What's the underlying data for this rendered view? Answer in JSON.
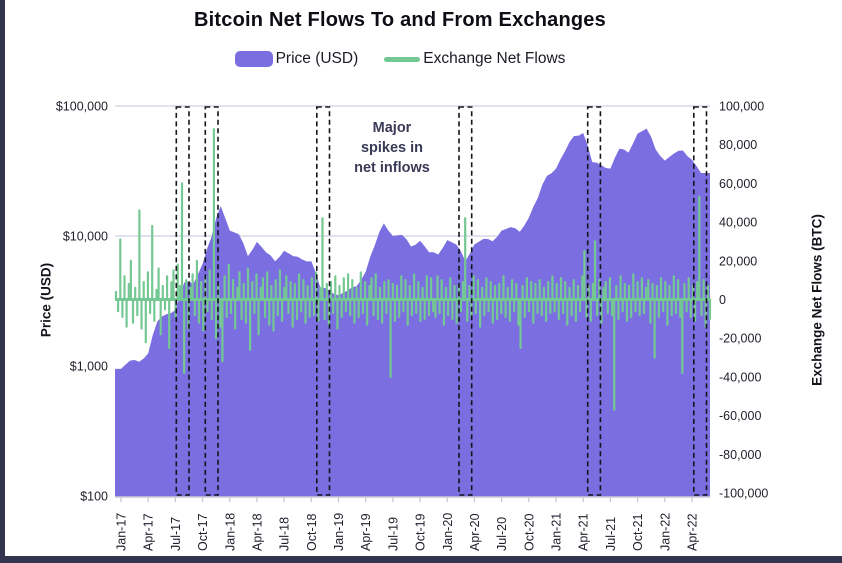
{
  "title": "Bitcoin Net Flows To and From Exchanges",
  "legend": {
    "price": {
      "label": "Price (USD)",
      "color": "#7b6ee0"
    },
    "flows": {
      "label": "Exchange Net Flows",
      "color": "#74c893"
    }
  },
  "annotation": {
    "text": "Major\nspikes in\nnet inflows"
  },
  "colors": {
    "price_area": "#7b6ee0",
    "flows_line": "#74c893",
    "gridline": "#d7d8e5",
    "axis_line": "#c9cad4",
    "tick_text": "#1f1f2b",
    "highlight_box": "#14141c",
    "frame": "#34344e"
  },
  "chart_data": {
    "type": "area",
    "title": "Bitcoin Net Flows To and From Exchanges",
    "x_start_month": "Jan-17",
    "x_end_month": "May-22",
    "x_tick_labels": [
      "Jan-17",
      "Apr-17",
      "Jul-17",
      "Oct-17",
      "Jan-18",
      "Apr-18",
      "Jul-18",
      "Oct-18",
      "Jan-19",
      "Apr-19",
      "Jul-19",
      "Oct-19",
      "Jan-20",
      "Apr-20",
      "Jul-20",
      "Oct-20",
      "Jan-21",
      "Apr-21",
      "Jul-21",
      "Oct-21",
      "Jan-22",
      "Apr-22"
    ],
    "left_axis": {
      "label": "Price (USD)",
      "scale": "log",
      "ticks": [
        "$100,000",
        "$10,000",
        "$1,000",
        "$100"
      ],
      "tick_values": [
        100000,
        10000,
        1000,
        100
      ],
      "range": [
        100,
        100000
      ]
    },
    "right_axis": {
      "label": "Exchange Net Flows (BTC)",
      "scale": "linear",
      "ticks": [
        "100,000",
        "80,000",
        "60,000",
        "40,000",
        "20,000",
        "0",
        "-20,000",
        "-40,000",
        "-60,000",
        "-80,000",
        "-100,000"
      ],
      "tick_values": [
        100000,
        80000,
        60000,
        40000,
        20000,
        0,
        -20000,
        -40000,
        -60000,
        -80000,
        -100000
      ],
      "range": [
        -100000,
        100000
      ]
    },
    "series": [
      {
        "name": "Price (USD)",
        "type": "area",
        "axis": "left",
        "color": "#7b6ee0",
        "x_unit": "months since Jan-2017",
        "values": [
          950,
          1100,
          1080,
          1250,
          2200,
          2500,
          2700,
          4400,
          4300,
          6100,
          9900,
          17000,
          11000,
          10300,
          7000,
          9000,
          7500,
          6400,
          7700,
          7000,
          6600,
          6400,
          4000,
          3800,
          3500,
          3800,
          4100,
          5300,
          8500,
          12500,
          10000,
          10200,
          8300,
          9200,
          7500,
          7200,
          9300,
          8600,
          6400,
          8600,
          9500,
          9100,
          11000,
          11700,
          10800,
          13800,
          19700,
          29000,
          33000,
          45000,
          58800,
          62000,
          37000,
          35000,
          33000,
          47000,
          43800,
          61300,
          67000,
          46300,
          38000,
          43000,
          45500,
          38600,
          30500
        ]
      },
      {
        "name": "Exchange Net Flows",
        "type": "spike-line",
        "axis": "right",
        "color": "#74c893",
        "x_unit": "weeks since Jan-2017",
        "values": [
          4000,
          -6000,
          31000,
          -9000,
          12000,
          -14000,
          8000,
          20000,
          -12000,
          6000,
          -8000,
          46000,
          -15000,
          9000,
          -22000,
          14000,
          -7000,
          38000,
          -11000,
          5000,
          16000,
          -18000,
          7000,
          -5000,
          12000,
          -25000,
          9000,
          15000,
          -9000,
          18000,
          7000,
          60000,
          -38000,
          10000,
          -15000,
          6000,
          13000,
          -8000,
          20000,
          -12000,
          9000,
          -16000,
          12000,
          -6000,
          15000,
          -10000,
          88000,
          -20000,
          8000,
          -14000,
          -32000,
          12000,
          -9000,
          18000,
          -7000,
          10000,
          -15000,
          6000,
          14000,
          -10000,
          8000,
          -12000,
          16000,
          -26000,
          9000,
          -7000,
          13000,
          -18000,
          6000,
          11000,
          -9000,
          14000,
          -13000,
          7000,
          -16000,
          10000,
          -8000,
          15000,
          -11000,
          6000,
          12000,
          -7000,
          9000,
          -14000,
          8000,
          -10000,
          13000,
          -6000,
          10000,
          -12000,
          7000,
          -9000,
          11000,
          -8000,
          14000,
          -11000,
          6000,
          42000,
          -10000,
          8000,
          -13000,
          9000,
          -7000,
          12000,
          -15000,
          7000,
          -9000,
          11000,
          -6000,
          13000,
          -8000,
          10000,
          -12000,
          6000,
          -9000,
          14000,
          -7000,
          9000,
          -13000,
          7000,
          11000,
          -8000,
          13000,
          -10000,
          6000,
          -12000,
          9000,
          -7000,
          10000,
          -40000,
          8000,
          -11000,
          7000,
          -9000,
          12000,
          -6000,
          10000,
          -13000,
          7000,
          -8000,
          13000,
          -7000,
          9000,
          -11000,
          6000,
          -10000,
          12000,
          -8000,
          11000,
          -6000,
          -9000,
          12000,
          -7000,
          10000,
          -13000,
          6000,
          -8000,
          11000,
          -10000,
          7000,
          -12000,
          8000,
          -6000,
          9000,
          42000,
          -11000,
          7000,
          -9000,
          12000,
          -7000,
          10000,
          -14000,
          6000,
          -8000,
          11000,
          -6000,
          9000,
          -12000,
          7000,
          -10000,
          8000,
          -7000,
          12000,
          -9000,
          6000,
          -11000,
          10000,
          -6000,
          8000,
          -13000,
          -25000,
          7000,
          -9000,
          11000,
          -6000,
          9000,
          -12000,
          8000,
          -7000,
          10000,
          -8000,
          6000,
          -11000,
          9000,
          -7000,
          12000,
          -6000,
          8000,
          -10000,
          11000,
          -7000,
          9000,
          -13000,
          6000,
          -8000,
          10000,
          -11000,
          7000,
          -6000,
          12000,
          25000,
          -9000,
          7000,
          -11000,
          8000,
          30000,
          -8000,
          10000,
          -12000,
          6000,
          9000,
          -7000,
          11000,
          -8000,
          -57000,
          7000,
          -10000,
          12000,
          -6000,
          8000,
          -11000,
          7000,
          -9000,
          13000,
          -6000,
          9000,
          -8000,
          11000,
          -7000,
          6000,
          10000,
          -12000,
          8000,
          -30000,
          7000,
          -9000,
          11000,
          -6000,
          9000,
          -13000,
          7000,
          -8000,
          12000,
          -7000,
          10000,
          -9000,
          -38000,
          8000,
          -6000,
          11000,
          -9000,
          7000,
          -11000,
          9000,
          53000,
          -8000,
          10000,
          -14000,
          7000,
          -10000
        ]
      }
    ],
    "highlight_boxes": {
      "style": "black dashed rectangle, full plot height",
      "meaning": "Major spikes in net inflows",
      "x_month_ranges": [
        [
          6.1,
          7.5
        ],
        [
          9.3,
          10.7
        ],
        [
          21.6,
          23.0
        ],
        [
          37.3,
          38.7
        ],
        [
          51.5,
          52.9
        ],
        [
          63.2,
          64.6
        ]
      ]
    },
    "grid": "horizontal gridlines at $100,000 and $10,000",
    "legend_position": "top center"
  }
}
